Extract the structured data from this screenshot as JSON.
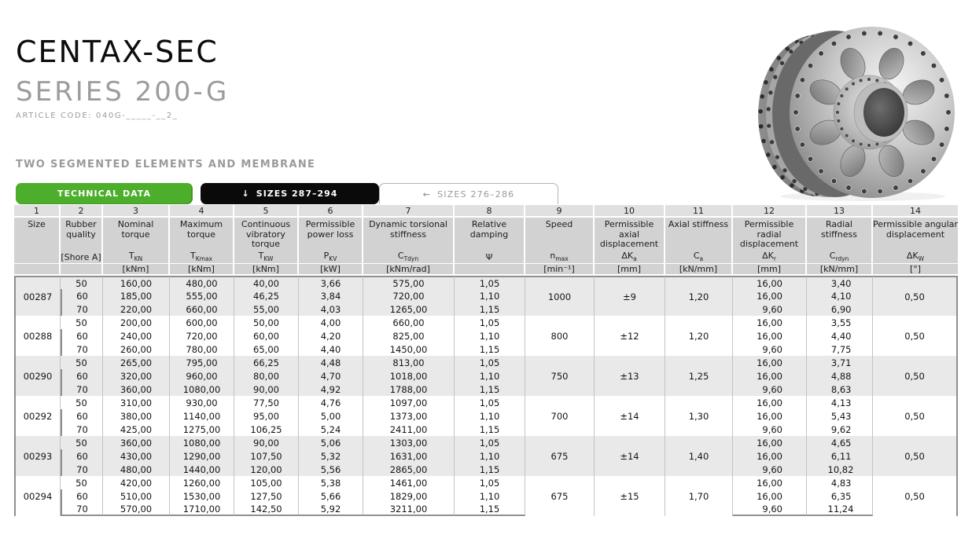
{
  "header": {
    "title": "CENTAX-SEC",
    "subtitle": "SERIES 200-G",
    "article_code": "ARTICLE CODE: 040G-_____-__2_",
    "section_title": "TWO SEGMENTED ELEMENTS AND MEMBRANE"
  },
  "tabs": [
    {
      "label": "TECHNICAL DATA",
      "icon": "",
      "style": "green"
    },
    {
      "label": "SIZES 287–294",
      "icon": "↓",
      "style": "black"
    },
    {
      "label": "SIZES 276–286",
      "icon": "←",
      "style": "white"
    }
  ],
  "colors": {
    "accent_green": "#4cae2b",
    "tab_black": "#0a0a0a",
    "header_gray": "#d2d2d2",
    "number_row_gray": "#e0e0e0",
    "shaded_row_gray": "#e9e9e9"
  },
  "table": {
    "columns": [
      {
        "num": "1",
        "name": "Size",
        "symbol": "",
        "symbol_sub": "",
        "unit": ""
      },
      {
        "num": "2",
        "name": "Rubber quality",
        "symbol": "[Shore A]",
        "symbol_sub": "",
        "unit": ""
      },
      {
        "num": "3",
        "name": "Nominal torque",
        "symbol": "T",
        "symbol_sub": "KN",
        "unit": "[kNm]"
      },
      {
        "num": "4",
        "name": "Maximum torque",
        "symbol": "T",
        "symbol_sub": "Kmax",
        "unit": "[kNm]"
      },
      {
        "num": "5",
        "name": "Continuous vibratory torque",
        "symbol": "T",
        "symbol_sub": "KW",
        "unit": "[kNm]"
      },
      {
        "num": "6",
        "name": "Permissible power loss",
        "symbol": "P",
        "symbol_sub": "KV",
        "unit": "[kW]"
      },
      {
        "num": "7",
        "name": "Dynamic torsional stiffness",
        "symbol": "C",
        "symbol_sub": "Tdyn",
        "unit": "[kNm/rad]"
      },
      {
        "num": "8",
        "name": "Relative damping",
        "symbol": "Ψ",
        "symbol_sub": "",
        "unit": ""
      },
      {
        "num": "9",
        "name": "Speed",
        "symbol": "n",
        "symbol_sub": "max",
        "unit": "[min⁻¹]"
      },
      {
        "num": "10",
        "name": "Permissible axial displacement",
        "symbol": "ΔK",
        "symbol_sub": "a",
        "unit": "[mm]"
      },
      {
        "num": "11",
        "name": "Axial stiffness",
        "symbol": "C",
        "symbol_sub": "a",
        "unit": "[kN/mm]"
      },
      {
        "num": "12",
        "name": "Permissible radial displacement",
        "symbol": "ΔK",
        "symbol_sub": "r",
        "unit": "[mm]"
      },
      {
        "num": "13",
        "name": "Radial stiffness",
        "symbol": "C",
        "symbol_sub": "rdyn",
        "unit": "[kN/mm]"
      },
      {
        "num": "14",
        "name": "Permissible angular displacement",
        "symbol": "ΔK",
        "symbol_sub": "W",
        "unit": "[°]"
      }
    ],
    "groups": [
      {
        "size": "00287",
        "speed": "1000",
        "axial_displacement": "±9",
        "axial_stiffness": "1,20",
        "angular_displacement": "0,50",
        "rows": [
          {
            "shore": "50",
            "nominal_torque": "160,00",
            "maximum_torque": "480,00",
            "vibratory_torque": "40,00",
            "power_loss": "3,66",
            "torsional_stiffness": "575,00",
            "damping": "1,05",
            "radial_displacement": "16,00",
            "radial_stiffness": "3,40"
          },
          {
            "shore": "60",
            "nominal_torque": "185,00",
            "maximum_torque": "555,00",
            "vibratory_torque": "46,25",
            "power_loss": "3,84",
            "torsional_stiffness": "720,00",
            "damping": "1,10",
            "radial_displacement": "16,00",
            "radial_stiffness": "4,10"
          },
          {
            "shore": "70",
            "nominal_torque": "220,00",
            "maximum_torque": "660,00",
            "vibratory_torque": "55,00",
            "power_loss": "4,03",
            "torsional_stiffness": "1265,00",
            "damping": "1,15",
            "radial_displacement": "9,60",
            "radial_stiffness": "6,90"
          }
        ]
      },
      {
        "size": "00288",
        "speed": "800",
        "axial_displacement": "±12",
        "axial_stiffness": "1,20",
        "angular_displacement": "0,50",
        "rows": [
          {
            "shore": "50",
            "nominal_torque": "200,00",
            "maximum_torque": "600,00",
            "vibratory_torque": "50,00",
            "power_loss": "4,00",
            "torsional_stiffness": "660,00",
            "damping": "1,05",
            "radial_displacement": "16,00",
            "radial_stiffness": "3,55"
          },
          {
            "shore": "60",
            "nominal_torque": "240,00",
            "maximum_torque": "720,00",
            "vibratory_torque": "60,00",
            "power_loss": "4,20",
            "torsional_stiffness": "825,00",
            "damping": "1,10",
            "radial_displacement": "16,00",
            "radial_stiffness": "4,40"
          },
          {
            "shore": "70",
            "nominal_torque": "260,00",
            "maximum_torque": "780,00",
            "vibratory_torque": "65,00",
            "power_loss": "4,40",
            "torsional_stiffness": "1450,00",
            "damping": "1,15",
            "radial_displacement": "9,60",
            "radial_stiffness": "7,75"
          }
        ]
      },
      {
        "size": "00290",
        "speed": "750",
        "axial_displacement": "±13",
        "axial_stiffness": "1,25",
        "angular_displacement": "0,50",
        "rows": [
          {
            "shore": "50",
            "nominal_torque": "265,00",
            "maximum_torque": "795,00",
            "vibratory_torque": "66,25",
            "power_loss": "4,48",
            "torsional_stiffness": "813,00",
            "damping": "1,05",
            "radial_displacement": "16,00",
            "radial_stiffness": "3,71"
          },
          {
            "shore": "60",
            "nominal_torque": "320,00",
            "maximum_torque": "960,00",
            "vibratory_torque": "80,00",
            "power_loss": "4,70",
            "torsional_stiffness": "1018,00",
            "damping": "1,10",
            "radial_displacement": "16,00",
            "radial_stiffness": "4,88"
          },
          {
            "shore": "70",
            "nominal_torque": "360,00",
            "maximum_torque": "1080,00",
            "vibratory_torque": "90,00",
            "power_loss": "4,92",
            "torsional_stiffness": "1788,00",
            "damping": "1,15",
            "radial_displacement": "9,60",
            "radial_stiffness": "8,63"
          }
        ]
      },
      {
        "size": "00292",
        "speed": "700",
        "axial_displacement": "±14",
        "axial_stiffness": "1,30",
        "angular_displacement": "0,50",
        "rows": [
          {
            "shore": "50",
            "nominal_torque": "310,00",
            "maximum_torque": "930,00",
            "vibratory_torque": "77,50",
            "power_loss": "4,76",
            "torsional_stiffness": "1097,00",
            "damping": "1,05",
            "radial_displacement": "16,00",
            "radial_stiffness": "4,13"
          },
          {
            "shore": "60",
            "nominal_torque": "380,00",
            "maximum_torque": "1140,00",
            "vibratory_torque": "95,00",
            "power_loss": "5,00",
            "torsional_stiffness": "1373,00",
            "damping": "1,10",
            "radial_displacement": "16,00",
            "radial_stiffness": "5,43"
          },
          {
            "shore": "70",
            "nominal_torque": "425,00",
            "maximum_torque": "1275,00",
            "vibratory_torque": "106,25",
            "power_loss": "5,24",
            "torsional_stiffness": "2411,00",
            "damping": "1,15",
            "radial_displacement": "9,60",
            "radial_stiffness": "9,62"
          }
        ]
      },
      {
        "size": "00293",
        "speed": "675",
        "axial_displacement": "±14",
        "axial_stiffness": "1,40",
        "angular_displacement": "0,50",
        "rows": [
          {
            "shore": "50",
            "nominal_torque": "360,00",
            "maximum_torque": "1080,00",
            "vibratory_torque": "90,00",
            "power_loss": "5,06",
            "torsional_stiffness": "1303,00",
            "damping": "1,05",
            "radial_displacement": "16,00",
            "radial_stiffness": "4,65"
          },
          {
            "shore": "60",
            "nominal_torque": "430,00",
            "maximum_torque": "1290,00",
            "vibratory_torque": "107,50",
            "power_loss": "5,32",
            "torsional_stiffness": "1631,00",
            "damping": "1,10",
            "radial_displacement": "16,00",
            "radial_stiffness": "6,11"
          },
          {
            "shore": "70",
            "nominal_torque": "480,00",
            "maximum_torque": "1440,00",
            "vibratory_torque": "120,00",
            "power_loss": "5,56",
            "torsional_stiffness": "2865,00",
            "damping": "1,15",
            "radial_displacement": "9,60",
            "radial_stiffness": "10,82"
          }
        ]
      },
      {
        "size": "00294",
        "speed": "675",
        "axial_displacement": "±15",
        "axial_stiffness": "1,70",
        "angular_displacement": "0,50",
        "rows": [
          {
            "shore": "50",
            "nominal_torque": "420,00",
            "maximum_torque": "1260,00",
            "vibratory_torque": "105,00",
            "power_loss": "5,38",
            "torsional_stiffness": "1461,00",
            "damping": "1,05",
            "radial_displacement": "16,00",
            "radial_stiffness": "4,83"
          },
          {
            "shore": "60",
            "nominal_torque": "510,00",
            "maximum_torque": "1530,00",
            "vibratory_torque": "127,50",
            "power_loss": "5,66",
            "torsional_stiffness": "1829,00",
            "damping": "1,10",
            "radial_displacement": "16,00",
            "radial_stiffness": "6,35"
          },
          {
            "shore": "70",
            "nominal_torque": "570,00",
            "maximum_torque": "1710,00",
            "vibratory_torque": "142,50",
            "power_loss": "5,92",
            "torsional_stiffness": "3211,00",
            "damping": "1,15",
            "radial_displacement": "9,60",
            "radial_stiffness": "11,24"
          }
        ]
      }
    ]
  }
}
